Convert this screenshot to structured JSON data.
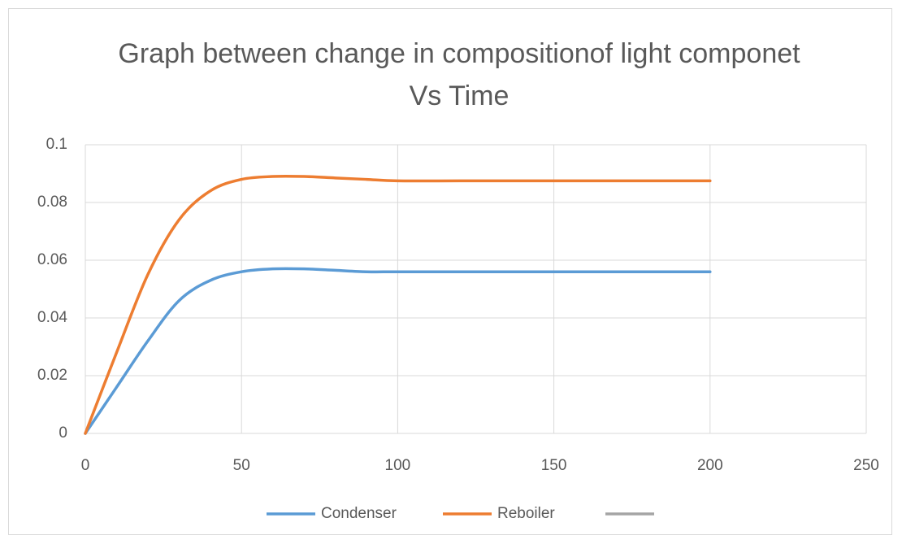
{
  "chart_data": {
    "type": "line",
    "title": "Graph between change in compositionof light componet Vs Time",
    "x": [
      0,
      10,
      20,
      30,
      40,
      50,
      60,
      70,
      80,
      90,
      100,
      120,
      140,
      160,
      180,
      200
    ],
    "series": [
      {
        "name": "Condenser",
        "color": "#5b9bd5",
        "values": [
          0,
          0.016,
          0.032,
          0.046,
          0.053,
          0.056,
          0.057,
          0.057,
          0.0565,
          0.056,
          0.056,
          0.056,
          0.056,
          0.056,
          0.056,
          0.056
        ]
      },
      {
        "name": "Reboiler",
        "color": "#ed7d31",
        "values": [
          0,
          0.028,
          0.055,
          0.074,
          0.084,
          0.088,
          0.089,
          0.089,
          0.0885,
          0.088,
          0.0875,
          0.0875,
          0.0875,
          0.0875,
          0.0875,
          0.0875
        ]
      },
      {
        "name": null,
        "color": "#a5a5a5",
        "values": [
          null,
          null,
          null,
          null,
          null,
          null,
          null,
          null,
          null,
          null,
          null,
          null,
          null,
          null,
          null,
          null
        ]
      }
    ],
    "xlim": [
      0,
      250
    ],
    "xticks": [
      0,
      50,
      100,
      150,
      200,
      250
    ],
    "ylim": [
      0,
      0.1
    ],
    "yticks": [
      0,
      0.02,
      0.04,
      0.06,
      0.08,
      0.1
    ],
    "grid": true,
    "legend": "bottom"
  }
}
